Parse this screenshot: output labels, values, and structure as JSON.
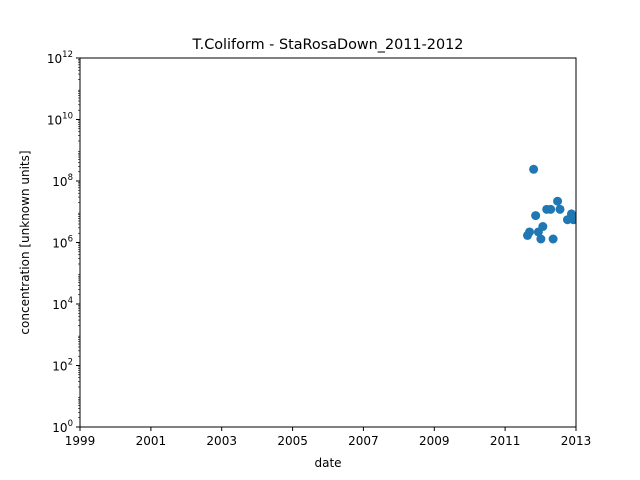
{
  "chart_data": {
    "type": "scatter",
    "title": "T.Coliform - StaRosaDown_2011-2012",
    "xlabel": "date",
    "ylabel": "concentration [unknown units]",
    "xlim": [
      "1999-01-01",
      "2013-01-01"
    ],
    "ylim": [
      1,
      1000000000000
    ],
    "yscale": "log",
    "grid": false,
    "x_ticks": [
      {
        "value": "1999-01-01",
        "label": "1999"
      },
      {
        "value": "2001-01-01",
        "label": "2001"
      },
      {
        "value": "2003-01-01",
        "label": "2003"
      },
      {
        "value": "2005-01-01",
        "label": "2005"
      },
      {
        "value": "2007-01-01",
        "label": "2007"
      },
      {
        "value": "2009-01-01",
        "label": "2009"
      },
      {
        "value": "2011-01-01",
        "label": "2011"
      },
      {
        "value": "2013-01-01",
        "label": "2013"
      }
    ],
    "y_ticks": [
      {
        "value": 1,
        "base": "10",
        "exp": "0"
      },
      {
        "value": 100,
        "base": "10",
        "exp": "2"
      },
      {
        "value": 10000,
        "base": "10",
        "exp": "4"
      },
      {
        "value": 1000000,
        "base": "10",
        "exp": "6"
      },
      {
        "value": 100000000,
        "base": "10",
        "exp": "8"
      },
      {
        "value": 10000000000,
        "base": "10",
        "exp": "10"
      },
      {
        "value": 1000000000000,
        "base": "10",
        "exp": "12"
      }
    ],
    "series": [
      {
        "color": "#1f77b4",
        "points": [
          {
            "x": "2011-08-20",
            "y": 1700000
          },
          {
            "x": "2011-09-10",
            "y": 2200000
          },
          {
            "x": "2011-10-22",
            "y": 240000000
          },
          {
            "x": "2011-11-12",
            "y": 7500000
          },
          {
            "x": "2011-12-10",
            "y": 2200000
          },
          {
            "x": "2012-01-05",
            "y": 1300000
          },
          {
            "x": "2012-01-25",
            "y": 3300000
          },
          {
            "x": "2012-03-05",
            "y": 12000000
          },
          {
            "x": "2012-04-15",
            "y": 12000000
          },
          {
            "x": "2012-05-10",
            "y": 1300000
          },
          {
            "x": "2012-06-25",
            "y": 22000000
          },
          {
            "x": "2012-07-20",
            "y": 12000000
          },
          {
            "x": "2012-10-05",
            "y": 5500000
          },
          {
            "x": "2012-11-15",
            "y": 8500000
          },
          {
            "x": "2012-12-05",
            "y": 5500000
          },
          {
            "x": "2012-12-20",
            "y": 6500000
          }
        ]
      }
    ]
  }
}
